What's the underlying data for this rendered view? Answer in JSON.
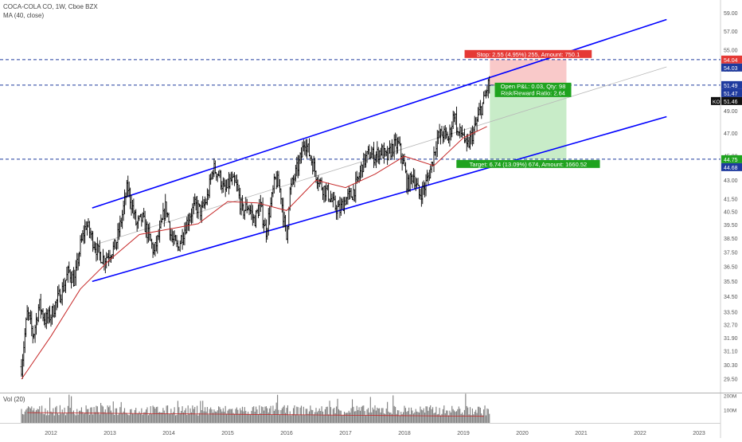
{
  "header": {
    "title": "COCA-COLA CO, 1W, Cboe BZX",
    "indicator": "MA (40, close)"
  },
  "volume_legend": "Vol (20)",
  "colors": {
    "candle": "#000000",
    "channel": "#0000ff",
    "ma": "#c62828",
    "dashed_level": "#1e3a9e",
    "stop_zone": "#f9c9c9",
    "target_zone": "#c8ecc8",
    "stop_label": "#e53935",
    "target_label": "#1fa31f",
    "axis_text": "#555555"
  },
  "chart_data": {
    "type": "candlestick",
    "symbol": "KO",
    "interval": "1W",
    "scale": "log",
    "ylim": [
      28.5,
      59.5
    ],
    "y_ticks": [
      "59.00",
      "57.00",
      "55.00",
      "53.00",
      "51.00",
      "49.00",
      "47.00",
      "45.00",
      "43.00",
      "41.50",
      "40.50",
      "39.50",
      "38.50",
      "37.50",
      "36.50",
      "35.50",
      "34.50",
      "33.50",
      "32.70",
      "31.90",
      "31.10",
      "30.30",
      "29.50"
    ],
    "x_ticks": [
      "2012",
      "2013",
      "2014",
      "2015",
      "2016",
      "2017",
      "2018",
      "2019",
      "2020",
      "2021",
      "2022",
      "2023"
    ],
    "volume_ticks": [
      "200M",
      "100M"
    ],
    "price_path": [
      [
        2011.5,
        30.2
      ],
      [
        2011.6,
        33.5
      ],
      [
        2011.7,
        32.0
      ],
      [
        2011.8,
        34.0
      ],
      [
        2011.9,
        33.0
      ],
      [
        2012.0,
        33.3
      ],
      [
        2012.1,
        34.2
      ],
      [
        2012.2,
        35.0
      ],
      [
        2012.3,
        36.2
      ],
      [
        2012.4,
        35.5
      ],
      [
        2012.5,
        38.0
      ],
      [
        2012.6,
        39.6
      ],
      [
        2012.7,
        38.5
      ],
      [
        2012.8,
        37.5
      ],
      [
        2012.9,
        37.0
      ],
      [
        2013.0,
        37.5
      ],
      [
        2013.1,
        38.0
      ],
      [
        2013.2,
        40.0
      ],
      [
        2013.3,
        42.5
      ],
      [
        2013.35,
        41.5
      ],
      [
        2013.45,
        39.5
      ],
      [
        2013.55,
        40.0
      ],
      [
        2013.65,
        38.8
      ],
      [
        2013.75,
        37.5
      ],
      [
        2013.85,
        39.0
      ],
      [
        2013.95,
        41.0
      ],
      [
        2014.05,
        38.5
      ],
      [
        2014.15,
        37.8
      ],
      [
        2014.25,
        39.0
      ],
      [
        2014.35,
        40.2
      ],
      [
        2014.45,
        41.0
      ],
      [
        2014.55,
        40.5
      ],
      [
        2014.65,
        41.5
      ],
      [
        2014.75,
        44.0
      ],
      [
        2014.85,
        43.5
      ],
      [
        2014.95,
        42.0
      ],
      [
        2015.05,
        43.0
      ],
      [
        2015.15,
        42.5
      ],
      [
        2015.25,
        40.5
      ],
      [
        2015.35,
        41.0
      ],
      [
        2015.45,
        39.8
      ],
      [
        2015.55,
        41.0
      ],
      [
        2015.65,
        39.0
      ],
      [
        2015.75,
        41.5
      ],
      [
        2015.8,
        43.0
      ],
      [
        2015.85,
        42.8
      ],
      [
        2015.9,
        42.0
      ],
      [
        2015.95,
        40.0
      ],
      [
        2016.0,
        38.5
      ],
      [
        2016.05,
        42.0
      ],
      [
        2016.15,
        43.5
      ],
      [
        2016.25,
        45.0
      ],
      [
        2016.3,
        46.5
      ],
      [
        2016.4,
        45.0
      ],
      [
        2016.5,
        43.5
      ],
      [
        2016.6,
        42.5
      ],
      [
        2016.7,
        42.0
      ],
      [
        2016.8,
        41.0
      ],
      [
        2016.9,
        40.6
      ],
      [
        2017.0,
        41.5
      ],
      [
        2017.1,
        41.8
      ],
      [
        2017.2,
        42.8
      ],
      [
        2017.3,
        44.5
      ],
      [
        2017.4,
        45.2
      ],
      [
        2017.5,
        45.0
      ],
      [
        2017.6,
        45.5
      ],
      [
        2017.7,
        44.8
      ],
      [
        2017.8,
        45.8
      ],
      [
        2017.9,
        46.0
      ],
      [
        2018.0,
        44.0
      ],
      [
        2018.05,
        42.5
      ],
      [
        2018.15,
        43.5
      ],
      [
        2018.25,
        41.8
      ],
      [
        2018.35,
        42.5
      ],
      [
        2018.45,
        44.0
      ],
      [
        2018.55,
        46.5
      ],
      [
        2018.65,
        47.0
      ],
      [
        2018.75,
        46.5
      ],
      [
        2018.85,
        49.0
      ],
      [
        2018.9,
        47.0
      ],
      [
        2019.0,
        47.0
      ],
      [
        2019.05,
        45.5
      ],
      [
        2019.12,
        46.5
      ],
      [
        2019.2,
        47.5
      ],
      [
        2019.28,
        49.0
      ],
      [
        2019.35,
        50.0
      ],
      [
        2019.42,
        51.5
      ]
    ],
    "moving_average": {
      "name": "MA (40, close)",
      "points": [
        [
          2011.5,
          29.5
        ],
        [
          2012.0,
          32.0
        ],
        [
          2012.5,
          35.0
        ],
        [
          2013.0,
          37.0
        ],
        [
          2013.5,
          38.8
        ],
        [
          2014.0,
          39.2
        ],
        [
          2014.5,
          39.6
        ],
        [
          2015.0,
          41.3
        ],
        [
          2015.5,
          41.2
        ],
        [
          2016.0,
          40.6
        ],
        [
          2016.5,
          43.0
        ],
        [
          2017.0,
          42.4
        ],
        [
          2017.5,
          43.5
        ],
        [
          2018.0,
          45.0
        ],
        [
          2018.5,
          44.2
        ],
        [
          2019.0,
          46.6
        ],
        [
          2019.4,
          47.6
        ]
      ]
    },
    "trend_channel": {
      "upper": [
        [
          2012.7,
          40.8
        ],
        [
          2022.45,
          58.3
        ]
      ],
      "lower": [
        [
          2012.7,
          35.5
        ],
        [
          2022.45,
          48.5
        ]
      ],
      "median": [
        [
          2012.7,
          38.0
        ],
        [
          2022.45,
          53.3
        ]
      ]
    },
    "horizontal_levels": [
      54.04,
      51.49,
      44.75
    ],
    "position": {
      "entry": 51.49,
      "stop": 54.04,
      "target": 44.75,
      "start_x": 2019.45,
      "end_x": 2020.75,
      "stop_label": "Stop: 2.55 (4.95%) 255, Amount: 750.1",
      "target_label": "Target: 6.74 (13.09%) 674, Amount: 1660.52",
      "open_pl": "Open P&L: 0.03, Qty: 98",
      "risk_reward": "Risk/Reward Ratio: 2.64"
    },
    "price_tags": [
      {
        "value": "54.04",
        "price": 54.04,
        "kind": "stop"
      },
      {
        "value": "54.03",
        "price": 54.03,
        "kind": "level"
      },
      {
        "value": "51.49",
        "price": 51.49,
        "kind": "level"
      },
      {
        "value": "51.47",
        "price": 51.47,
        "kind": "level"
      },
      {
        "value": "51.46",
        "price": 51.46,
        "kind": "last",
        "symbol": "KO"
      },
      {
        "value": "44.75",
        "price": 44.75,
        "kind": "target"
      },
      {
        "value": "44.68",
        "price": 44.68,
        "kind": "level"
      }
    ],
    "volume_range": [
      2011.5,
      2019.5
    ]
  }
}
